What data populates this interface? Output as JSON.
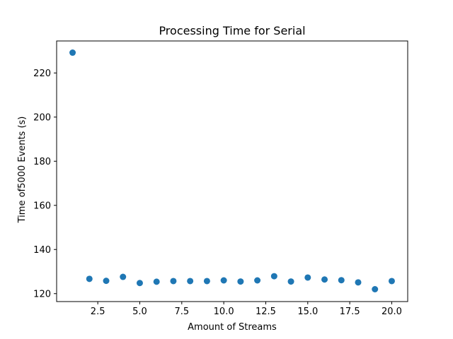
{
  "chart_data": {
    "type": "scatter",
    "title": "Processing Time for Serial",
    "xlabel": "Amount of Streams",
    "ylabel": "Time of5000 Events (s)",
    "xlim": [
      0.05,
      20.95
    ],
    "ylim": [
      116.4,
      234.5
    ],
    "xticks": [
      2.5,
      5.0,
      7.5,
      10.0,
      12.5,
      15.0,
      17.5,
      20.0
    ],
    "xtick_labels": [
      "2.5",
      "5.0",
      "7.5",
      "10.0",
      "12.5",
      "15.0",
      "17.5",
      "20.0"
    ],
    "yticks": [
      120,
      140,
      160,
      180,
      200,
      220
    ],
    "ytick_labels": [
      "120",
      "140",
      "160",
      "180",
      "200",
      "220"
    ],
    "grid": false,
    "series": [
      {
        "color": "#1f77b4",
        "x": [
          1,
          2,
          3,
          4,
          5,
          6,
          7,
          8,
          9,
          10,
          11,
          12,
          13,
          14,
          15,
          16,
          17,
          18,
          19,
          20
        ],
        "y": [
          229.2,
          126.7,
          125.8,
          127.6,
          124.8,
          125.4,
          125.7,
          125.7,
          125.7,
          126.0,
          125.5,
          126.0,
          127.9,
          125.5,
          127.3,
          126.4,
          126.1,
          125.1,
          122.0,
          125.7
        ]
      }
    ]
  }
}
